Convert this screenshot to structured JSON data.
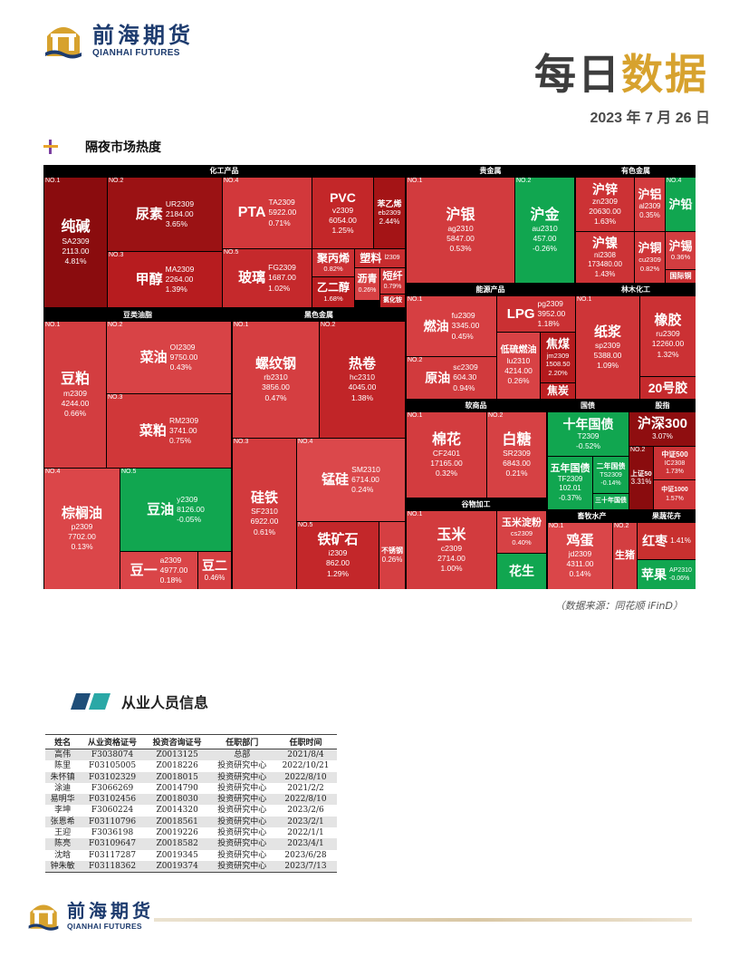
{
  "header": {
    "brand_cn": "前海期货",
    "brand_en": "QIANHAI FUTURES",
    "title_part1": "每日",
    "title_part2": "数据",
    "date": "2023 年 7 月 26 日"
  },
  "section1_title": "隔夜市场热度",
  "heatmap": {
    "sections": [
      {
        "id": "chem",
        "title": "化工产品",
        "tiles": [
          {
            "rank": "NO.1",
            "name": "纯碱",
            "code": "SA2309",
            "price": "2113.00",
            "change": "4.81%",
            "trend": "up"
          },
          {
            "rank": "NO.2",
            "name": "尿素",
            "code": "UR2309",
            "price": "2184.00",
            "change": "3.65%",
            "trend": "up"
          },
          {
            "rank": "NO.3",
            "name": "甲醇",
            "code": "MA2309",
            "price": "2264.00",
            "change": "1.39%",
            "trend": "up"
          },
          {
            "rank": "NO.4",
            "name": "PTA",
            "code": "TA2309",
            "price": "5922.00",
            "change": "0.71%",
            "trend": "up"
          },
          {
            "rank": "NO.5",
            "name": "玻璃",
            "code": "FG2309",
            "price": "1687.00",
            "change": "1.02%",
            "trend": "up"
          },
          {
            "rank": "",
            "name": "PVC",
            "code": "v2309",
            "price": "6054.00",
            "change": "1.25%",
            "trend": "up"
          },
          {
            "rank": "",
            "name": "苯乙烯",
            "code": "eb2309",
            "price": "",
            "change": "2.44%",
            "trend": "up"
          },
          {
            "rank": "",
            "name": "聚丙烯",
            "code": "",
            "price": "",
            "change": "0.82%",
            "trend": "up"
          },
          {
            "rank": "",
            "name": "塑料",
            "code": "l2309",
            "price": "",
            "change": "",
            "trend": "up"
          },
          {
            "rank": "",
            "name": "沥青",
            "code": "",
            "price": "",
            "change": "0.26%",
            "trend": "up"
          },
          {
            "rank": "",
            "name": "短纤",
            "code": "",
            "price": "",
            "change": "0.79%",
            "trend": "up"
          },
          {
            "rank": "",
            "name": "乙二醇",
            "code": "",
            "price": "",
            "change": "1.68%",
            "trend": "up"
          },
          {
            "rank": "",
            "name": "氯化铵",
            "code": "",
            "price": "",
            "change": "",
            "trend": "up"
          }
        ]
      },
      {
        "id": "precious",
        "title": "贵金属",
        "tiles": [
          {
            "rank": "NO.1",
            "name": "沪银",
            "code": "ag2310",
            "price": "5847.00",
            "change": "0.53%",
            "trend": "up"
          },
          {
            "rank": "NO.2",
            "name": "沪金",
            "code": "au2310",
            "price": "457.00",
            "change": "-0.26%",
            "trend": "down"
          }
        ]
      },
      {
        "id": "nonferrous",
        "title": "有色金属",
        "tiles": [
          {
            "rank": "",
            "name": "沪锌",
            "code": "zn2309",
            "price": "20630.00",
            "change": "1.63%",
            "trend": "up"
          },
          {
            "rank": "",
            "name": "沪铝",
            "code": "al2309",
            "price": "",
            "change": "0.35%",
            "trend": "up"
          },
          {
            "rank": "NO.4",
            "name": "沪铅",
            "code": "",
            "price": "",
            "change": "",
            "trend": "down"
          },
          {
            "rank": "",
            "name": "沪镍",
            "code": "ni2308",
            "price": "173480.00",
            "change": "1.43%",
            "trend": "up"
          },
          {
            "rank": "",
            "name": "沪铜",
            "code": "cu2309",
            "price": "",
            "change": "0.82%",
            "trend": "up"
          },
          {
            "rank": "",
            "name": "沪锡",
            "code": "",
            "price": "",
            "change": "0.36%",
            "trend": "up"
          },
          {
            "rank": "",
            "name": "国际铜",
            "code": "",
            "price": "",
            "change": "",
            "trend": "up"
          }
        ]
      },
      {
        "id": "energy",
        "title": "能源产品",
        "tiles": [
          {
            "rank": "NO.1",
            "name": "燃油",
            "code": "fu2309",
            "price": "3345.00",
            "change": "0.45%",
            "trend": "up"
          },
          {
            "rank": "NO.2",
            "name": "原油",
            "code": "sc2309",
            "price": "604.30",
            "change": "0.94%",
            "trend": "up"
          },
          {
            "rank": "",
            "name": "LPG",
            "code": "pg2309",
            "price": "3952.00",
            "change": "1.18%",
            "trend": "up"
          },
          {
            "rank": "",
            "name": "低硫燃油",
            "code": "lu2310",
            "price": "4214.00",
            "change": "0.26%",
            "trend": "up"
          },
          {
            "rank": "",
            "name": "焦煤",
            "code": "jm2309",
            "price": "1508.50",
            "change": "2.20%",
            "trend": "up"
          },
          {
            "rank": "",
            "name": "焦炭",
            "code": "",
            "price": "",
            "change": "",
            "trend": "up"
          }
        ]
      },
      {
        "id": "forest",
        "title": "林木化工",
        "tiles": [
          {
            "rank": "NO.1",
            "name": "纸浆",
            "code": "sp2309",
            "price": "5388.00",
            "change": "1.09%",
            "trend": "up"
          },
          {
            "rank": "",
            "name": "橡胶",
            "code": "ru2309",
            "price": "12260.00",
            "change": "1.32%",
            "trend": "up"
          },
          {
            "rank": "",
            "name": "20号胶",
            "code": "",
            "price": "",
            "change": "",
            "trend": "up"
          }
        ]
      },
      {
        "id": "oils",
        "title": "豆类油脂",
        "tiles": [
          {
            "rank": "NO.1",
            "name": "豆粕",
            "code": "m2309",
            "price": "4244.00",
            "change": "0.66%",
            "trend": "up"
          },
          {
            "rank": "NO.2",
            "name": "菜油",
            "code": "OI2309",
            "price": "9750.00",
            "change": "0.43%",
            "trend": "up"
          },
          {
            "rank": "NO.3",
            "name": "菜粕",
            "code": "RM2309",
            "price": "3741.00",
            "change": "0.75%",
            "trend": "up"
          },
          {
            "rank": "NO.4",
            "name": "棕榈油",
            "code": "p2309",
            "price": "7702.00",
            "change": "0.13%",
            "trend": "up"
          },
          {
            "rank": "NO.5",
            "name": "豆油",
            "code": "y2309",
            "price": "8126.00",
            "change": "-0.05%",
            "trend": "down"
          },
          {
            "rank": "",
            "name": "豆一",
            "code": "a2309",
            "price": "4977.00",
            "change": "0.18%",
            "trend": "up"
          },
          {
            "rank": "",
            "name": "豆二",
            "code": "",
            "price": "",
            "change": "0.46%",
            "trend": "up"
          }
        ]
      },
      {
        "id": "ferrous",
        "title": "黑色金属",
        "tiles": [
          {
            "rank": "NO.1",
            "name": "螺纹钢",
            "code": "rb2310",
            "price": "3856.00",
            "change": "0.47%",
            "trend": "up"
          },
          {
            "rank": "NO.2",
            "name": "热卷",
            "code": "hc2310",
            "price": "4045.00",
            "change": "1.38%",
            "trend": "up"
          },
          {
            "rank": "NO.3",
            "name": "硅铁",
            "code": "SF2310",
            "price": "6922.00",
            "change": "0.61%",
            "trend": "up"
          },
          {
            "rank": "NO.4",
            "name": "锰硅",
            "code": "SM2310",
            "price": "6714.00",
            "change": "0.24%",
            "trend": "up"
          },
          {
            "rank": "NO.5",
            "name": "铁矿石",
            "code": "i2309",
            "price": "862.00",
            "change": "1.29%",
            "trend": "up"
          },
          {
            "rank": "",
            "name": "不锈钢",
            "code": "",
            "price": "",
            "change": "0.26%",
            "trend": "up"
          }
        ]
      },
      {
        "id": "soft",
        "title": "软商品",
        "tiles": [
          {
            "rank": "NO.1",
            "name": "棉花",
            "code": "CF2401",
            "price": "17165.00",
            "change": "0.32%",
            "trend": "up"
          },
          {
            "rank": "NO.2",
            "name": "白糖",
            "code": "SR2309",
            "price": "6843.00",
            "change": "0.21%",
            "trend": "up"
          }
        ]
      },
      {
        "id": "bonds",
        "title": "国债",
        "tiles": [
          {
            "rank": "",
            "name": "十年国债",
            "code": "T2309",
            "price": "",
            "change": "-0.52%",
            "trend": "down"
          },
          {
            "rank": "",
            "name": "五年国债",
            "code": "TF2309",
            "price": "102.01",
            "change": "-0.37%",
            "trend": "down"
          },
          {
            "rank": "",
            "name": "二年国债",
            "code": "TS2309",
            "price": "",
            "change": "-0.14%",
            "trend": "down"
          },
          {
            "rank": "",
            "name": "三十年国债",
            "code": "",
            "price": "",
            "change": "",
            "trend": "down"
          }
        ]
      },
      {
        "id": "index",
        "title": "股指",
        "tiles": [
          {
            "rank": "",
            "name": "沪深300",
            "code": "",
            "price": "",
            "change": "3.07%",
            "trend": "up"
          },
          {
            "rank": "NO.2",
            "name": "上证50",
            "code": "",
            "price": "",
            "change": "3.31%",
            "trend": "up"
          },
          {
            "rank": "",
            "name": "中证500",
            "code": "IC2308",
            "price": "",
            "change": "1.73%",
            "trend": "up"
          },
          {
            "rank": "",
            "name": "中证1000",
            "code": "",
            "price": "",
            "change": "1.57%",
            "trend": "up"
          }
        ]
      },
      {
        "id": "grain",
        "title": "谷物加工",
        "tiles": [
          {
            "rank": "NO.1",
            "name": "玉米",
            "code": "c2309",
            "price": "2714.00",
            "change": "1.00%",
            "trend": "up"
          },
          {
            "rank": "",
            "name": "玉米淀粉",
            "code": "cs2309",
            "price": "",
            "change": "0.40%",
            "trend": "up"
          },
          {
            "rank": "",
            "name": "花生",
            "code": "",
            "price": "",
            "change": "",
            "trend": "down"
          }
        ]
      },
      {
        "id": "livestock",
        "title": "畜牧水产",
        "tiles": [
          {
            "rank": "NO.1",
            "name": "鸡蛋",
            "code": "jd2309",
            "price": "4311.00",
            "change": "0.14%",
            "trend": "up"
          },
          {
            "rank": "NO.2",
            "name": "生猪",
            "code": "",
            "price": "",
            "change": "",
            "trend": "up"
          }
        ]
      },
      {
        "id": "fruit",
        "title": "果蔬花卉",
        "tiles": [
          {
            "rank": "",
            "name": "红枣",
            "code": "",
            "price": "",
            "change": "1.41%",
            "trend": "up"
          },
          {
            "rank": "",
            "name": "苹果",
            "code": "AP2310",
            "price": "",
            "change": "-0.06%",
            "trend": "down"
          }
        ]
      }
    ]
  },
  "source": "（数据来源：同花顺 iFinD）",
  "section2_title": "从业人员信息",
  "staff": {
    "headers": [
      "姓名",
      "从业资格证号",
      "投资咨询证号",
      "任职部门",
      "任职时间"
    ],
    "rows": [
      [
        "高伟",
        "F3038074",
        "Z0013125",
        "总部",
        "2021/8/4"
      ],
      [
        "陈里",
        "F03105005",
        "Z0018226",
        "投资研究中心",
        "2022/10/21"
      ],
      [
        "朱怀镇",
        "F03102329",
        "Z0018015",
        "投资研究中心",
        "2022/8/10"
      ],
      [
        "涂迪",
        "F3066269",
        "Z0014790",
        "投资研究中心",
        "2021/2/2"
      ],
      [
        "易明华",
        "F03102456",
        "Z0018030",
        "投资研究中心",
        "2022/8/10"
      ],
      [
        "李坤",
        "F3060224",
        "Z0014320",
        "投资研究中心",
        "2023/2/6"
      ],
      [
        "张恩希",
        "F03110796",
        "Z0018561",
        "投资研究中心",
        "2023/2/1"
      ],
      [
        "王迎",
        "F3036198",
        "Z0019226",
        "投资研究中心",
        "2022/1/1"
      ],
      [
        "陈亮",
        "F03109647",
        "Z0018582",
        "投资研究中心",
        "2023/4/1"
      ],
      [
        "沈晗",
        "F03117287",
        "Z0019345",
        "投资研究中心",
        "2023/6/28"
      ],
      [
        "钟朱敏",
        "F03118362",
        "Z0019374",
        "投资研究中心",
        "2023/7/13"
      ]
    ]
  },
  "colors": {
    "brand_navy": "#1d3b6e",
    "brand_gold": "#d7a22e",
    "up_dark": "#8a0c0e",
    "up_mid": "#b71c1f",
    "up_light": "#db4043",
    "down": "#11a650"
  }
}
